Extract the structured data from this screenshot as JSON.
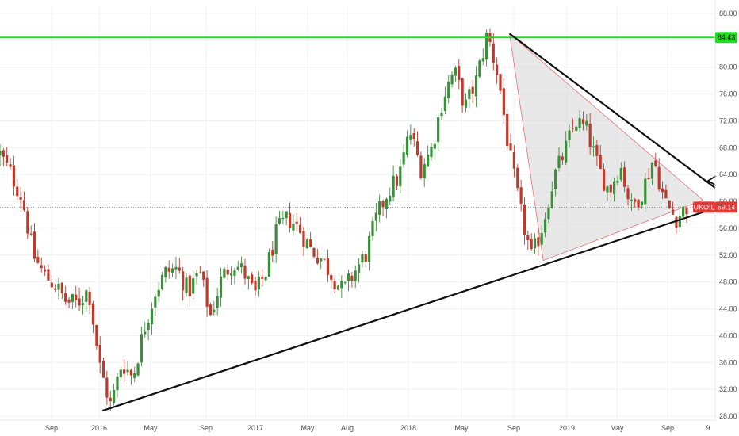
{
  "colors": {
    "background": "#ffffff",
    "grid": "#eef0f3",
    "up": "#3a8f3a",
    "down": "#c0392b",
    "resistance": "#22dd22",
    "trendline": "#111111",
    "current_price": "#e53935",
    "triangle_fill": "#d6d6d6"
  },
  "chart_data": {
    "type": "candlestick",
    "symbol": "UKOIL",
    "ylim": [
      28.0,
      88.0
    ],
    "y_ticks": [
      "28.00",
      "32.00",
      "36.00",
      "40.00",
      "44.00",
      "48.00",
      "52.00",
      "56.00",
      "60.00",
      "64.00",
      "68.00",
      "72.00",
      "76.00",
      "80.00",
      "84.00",
      "88.00"
    ],
    "x_ticks": [
      "Sep",
      "2016",
      "May",
      "Sep",
      "2017",
      "May",
      "Aug",
      "2018",
      "May",
      "Sep",
      "2019",
      "May",
      "Sep",
      "9"
    ],
    "anchor_prices": [
      67.0,
      64.0,
      60.5,
      52.0,
      49.0,
      47.5,
      45.0,
      44.8,
      47.0,
      35.5,
      29.5,
      36.0,
      33.8,
      41.0,
      46.5,
      49.5,
      50.0,
      46.5,
      49.5,
      43.0,
      48.5,
      51.0,
      49.5,
      46.0,
      49.5,
      55.5,
      57.5,
      56.0,
      53.0,
      51.5,
      49.0,
      46.5,
      49.5,
      52.0,
      57.5,
      61.5,
      63.5,
      70.5,
      65.0,
      68.0,
      75.5,
      79.5,
      74.0,
      78.0,
      85.0,
      78.5,
      67.0,
      58.5,
      51.5,
      56.5,
      63.5,
      67.5,
      72.0,
      70.5,
      65.0,
      61.5,
      65.5,
      59.0,
      61.5,
      66.5,
      60.0,
      57.5,
      59.14
    ],
    "resistance_level": 84.43,
    "current_price": 59.14,
    "current_label": "UKOIL",
    "resistance_label": "84.43",
    "current_value_label": "59.14",
    "lower_trendline": [
      {
        "t": 0.1432,
        "price": 28.8
      },
      {
        "t": 1.0,
        "price": 59.0
      }
    ],
    "upper_trendline": [
      {
        "t": 0.7124,
        "price": 85.0
      },
      {
        "t": 1.0,
        "price": 62.0
      }
    ],
    "triangle_pattern": [
      {
        "t": 0.7124,
        "price": 85.0
      },
      {
        "t": 0.7596,
        "price": 51.2
      },
      {
        "t": 0.9828,
        "price": 60.2
      }
    ]
  }
}
